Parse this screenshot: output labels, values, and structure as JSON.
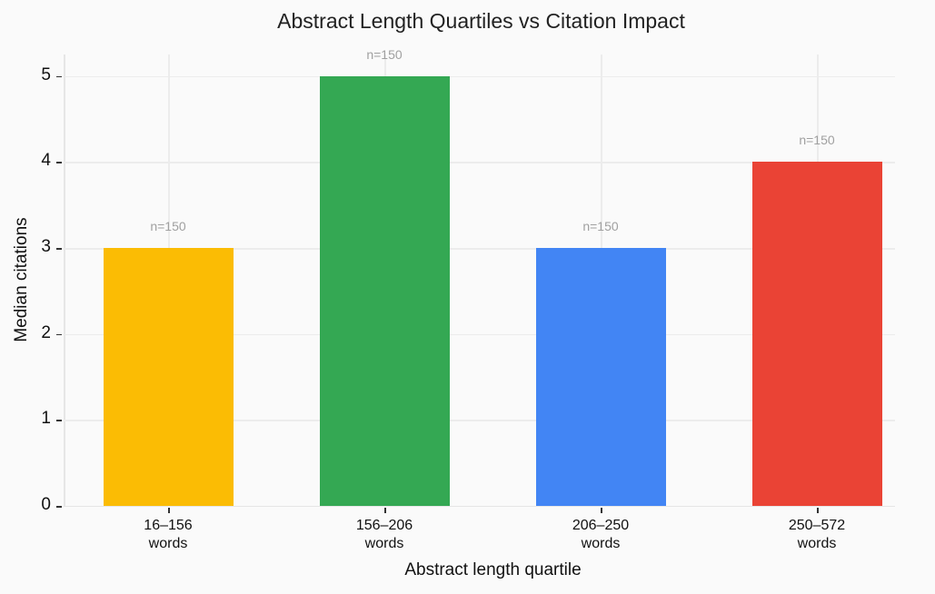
{
  "chart_data": {
    "type": "bar",
    "title": "Abstract Length Quartiles vs Citation Impact",
    "xlabel": "Abstract length quartile",
    "ylabel": "Median citations",
    "categories": [
      "16–156 words",
      "156–206 words",
      "206–250 words",
      "250–572 words"
    ],
    "category_lines": [
      [
        "16–156",
        "words"
      ],
      [
        "156–206",
        "words"
      ],
      [
        "206–250",
        "words"
      ],
      [
        "250–572",
        "words"
      ]
    ],
    "values": [
      3,
      5,
      3,
      4
    ],
    "annotations": [
      "n=150",
      "n=150",
      "n=150",
      "n=150"
    ],
    "colors": [
      "#fbbc04",
      "#34a853",
      "#4285f4",
      "#ea4335"
    ],
    "ylim": [
      0,
      5.25
    ],
    "yticks": [
      0,
      1,
      2,
      3,
      4,
      5
    ],
    "grid": true,
    "legend": null
  }
}
